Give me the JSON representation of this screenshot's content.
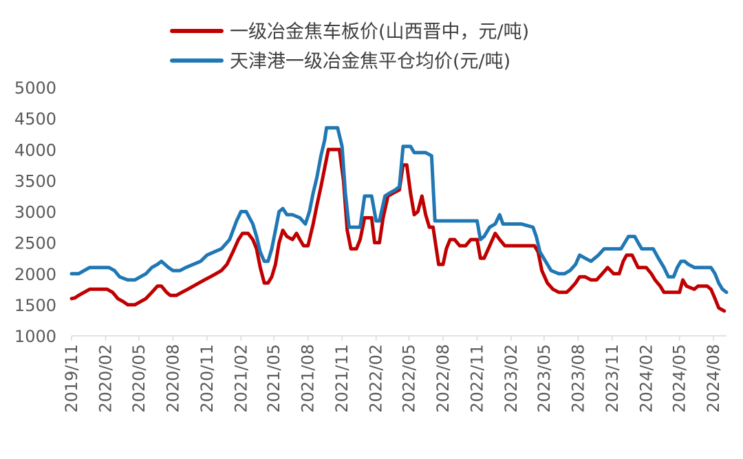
{
  "chart_data": {
    "type": "line",
    "title": "",
    "xlabel": "",
    "ylabel": "",
    "ylim": [
      1000,
      5000
    ],
    "yticks": [
      1000,
      1500,
      2000,
      2500,
      3000,
      3500,
      4000,
      4500,
      5000
    ],
    "xticks": [
      "2019/11",
      "2020/02",
      "2020/05",
      "2020/08",
      "2020/11",
      "2021/02",
      "2021/05",
      "2021/08",
      "2021/11",
      "2022/02",
      "2022/05",
      "2022/08",
      "2022/11",
      "2023/02",
      "2023/05",
      "2023/08",
      "2023/11",
      "2024/02",
      "2024/05",
      "2024/08"
    ],
    "legend_position": "top",
    "grid": false,
    "series": [
      {
        "name": "一级冶金焦车板价(山西晋中，元/吨)",
        "color": "#C00000",
        "points": [
          [
            "2019-11-01",
            1600
          ],
          [
            "2019-11-10",
            1610
          ],
          [
            "2019-11-20",
            1650
          ],
          [
            "2019-12-05",
            1700
          ],
          [
            "2019-12-20",
            1750
          ],
          [
            "2020-01-15",
            1750
          ],
          [
            "2020-02-05",
            1750
          ],
          [
            "2020-02-20",
            1700
          ],
          [
            "2020-03-05",
            1600
          ],
          [
            "2020-03-20",
            1550
          ],
          [
            "2020-04-01",
            1500
          ],
          [
            "2020-04-20",
            1500
          ],
          [
            "2020-05-05",
            1550
          ],
          [
            "2020-05-20",
            1600
          ],
          [
            "2020-06-05",
            1700
          ],
          [
            "2020-06-20",
            1800
          ],
          [
            "2020-07-01",
            1800
          ],
          [
            "2020-07-15",
            1700
          ],
          [
            "2020-07-25",
            1650
          ],
          [
            "2020-08-10",
            1650
          ],
          [
            "2020-08-25",
            1700
          ],
          [
            "2020-09-10",
            1750
          ],
          [
            "2020-09-25",
            1800
          ],
          [
            "2020-10-10",
            1850
          ],
          [
            "2020-10-25",
            1900
          ],
          [
            "2020-11-10",
            1950
          ],
          [
            "2020-11-25",
            2000
          ],
          [
            "2020-12-10",
            2050
          ],
          [
            "2020-12-25",
            2150
          ],
          [
            "2021-01-10",
            2350
          ],
          [
            "2021-01-25",
            2550
          ],
          [
            "2021-02-05",
            2650
          ],
          [
            "2021-02-20",
            2650
          ],
          [
            "2021-03-05",
            2550
          ],
          [
            "2021-03-15",
            2400
          ],
          [
            "2021-03-25",
            2100
          ],
          [
            "2021-04-05",
            1850
          ],
          [
            "2021-04-15",
            1850
          ],
          [
            "2021-04-25",
            1950
          ],
          [
            "2021-05-05",
            2150
          ],
          [
            "2021-05-15",
            2500
          ],
          [
            "2021-05-25",
            2700
          ],
          [
            "2021-06-05",
            2600
          ],
          [
            "2021-06-20",
            2550
          ],
          [
            "2021-07-01",
            2650
          ],
          [
            "2021-07-10",
            2550
          ],
          [
            "2021-07-20",
            2450
          ],
          [
            "2021-08-01",
            2450
          ],
          [
            "2021-08-15",
            2800
          ],
          [
            "2021-08-25",
            3100
          ],
          [
            "2021-09-05",
            3400
          ],
          [
            "2021-09-15",
            3700
          ],
          [
            "2021-09-25",
            4000
          ],
          [
            "2021-10-15",
            4000
          ],
          [
            "2021-10-25",
            4000
          ],
          [
            "2021-11-05",
            3500
          ],
          [
            "2021-11-15",
            2700
          ],
          [
            "2021-11-25",
            2400
          ],
          [
            "2021-12-10",
            2400
          ],
          [
            "2021-12-20",
            2550
          ],
          [
            "2022-01-01",
            2900
          ],
          [
            "2022-01-20",
            2900
          ],
          [
            "2022-01-28",
            2500
          ],
          [
            "2022-02-10",
            2500
          ],
          [
            "2022-02-20",
            2900
          ],
          [
            "2022-03-05",
            3250
          ],
          [
            "2022-03-20",
            3300
          ],
          [
            "2022-04-05",
            3350
          ],
          [
            "2022-04-15",
            3750
          ],
          [
            "2022-04-25",
            3750
          ],
          [
            "2022-05-05",
            3300
          ],
          [
            "2022-05-15",
            2950
          ],
          [
            "2022-05-25",
            3000
          ],
          [
            "2022-06-05",
            3250
          ],
          [
            "2022-06-15",
            2950
          ],
          [
            "2022-06-25",
            2750
          ],
          [
            "2022-07-05",
            2750
          ],
          [
            "2022-07-20",
            2150
          ],
          [
            "2022-08-01",
            2150
          ],
          [
            "2022-08-10",
            2400
          ],
          [
            "2022-08-20",
            2550
          ],
          [
            "2022-09-01",
            2550
          ],
          [
            "2022-09-15",
            2450
          ],
          [
            "2022-10-01",
            2450
          ],
          [
            "2022-10-15",
            2550
          ],
          [
            "2022-11-01",
            2550
          ],
          [
            "2022-11-10",
            2250
          ],
          [
            "2022-11-20",
            2250
          ],
          [
            "2022-12-05",
            2450
          ],
          [
            "2022-12-20",
            2650
          ],
          [
            "2023-01-01",
            2550
          ],
          [
            "2023-01-15",
            2450
          ],
          [
            "2023-03-15",
            2450
          ],
          [
            "2023-04-05",
            2450
          ],
          [
            "2023-04-15",
            2350
          ],
          [
            "2023-04-25",
            2050
          ],
          [
            "2023-05-10",
            1850
          ],
          [
            "2023-05-25",
            1750
          ],
          [
            "2023-06-10",
            1700
          ],
          [
            "2023-07-01",
            1700
          ],
          [
            "2023-07-10",
            1750
          ],
          [
            "2023-07-25",
            1850
          ],
          [
            "2023-08-05",
            1950
          ],
          [
            "2023-08-20",
            1950
          ],
          [
            "2023-09-05",
            1900
          ],
          [
            "2023-09-20",
            1900
          ],
          [
            "2023-10-05",
            2000
          ],
          [
            "2023-10-20",
            2100
          ],
          [
            "2023-11-05",
            2000
          ],
          [
            "2023-11-20",
            2000
          ],
          [
            "2023-12-01",
            2200
          ],
          [
            "2023-12-10",
            2300
          ],
          [
            "2023-12-25",
            2300
          ],
          [
            "2024-01-10",
            2100
          ],
          [
            "2024-02-01",
            2100
          ],
          [
            "2024-02-15",
            2000
          ],
          [
            "2024-02-25",
            1900
          ],
          [
            "2024-03-10",
            1800
          ],
          [
            "2024-03-20",
            1700
          ],
          [
            "2024-05-01",
            1700
          ],
          [
            "2024-05-10",
            1900
          ],
          [
            "2024-05-20",
            1800
          ],
          [
            "2024-06-10",
            1750
          ],
          [
            "2024-06-20",
            1800
          ],
          [
            "2024-07-15",
            1800
          ],
          [
            "2024-07-25",
            1750
          ],
          [
            "2024-08-05",
            1600
          ],
          [
            "2024-08-15",
            1450
          ],
          [
            "2024-08-30",
            1400
          ]
        ]
      },
      {
        "name": "天津港一级冶金焦平仓均价(元/吨)",
        "color": "#1F77B4",
        "points": [
          [
            "2019-11-01",
            2000
          ],
          [
            "2019-11-20",
            2000
          ],
          [
            "2019-12-05",
            2050
          ],
          [
            "2019-12-20",
            2100
          ],
          [
            "2020-02-10",
            2100
          ],
          [
            "2020-02-25",
            2050
          ],
          [
            "2020-03-10",
            1950
          ],
          [
            "2020-04-01",
            1900
          ],
          [
            "2020-04-20",
            1900
          ],
          [
            "2020-05-05",
            1950
          ],
          [
            "2020-05-20",
            2000
          ],
          [
            "2020-06-05",
            2100
          ],
          [
            "2020-06-20",
            2150
          ],
          [
            "2020-07-01",
            2200
          ],
          [
            "2020-07-20",
            2100
          ],
          [
            "2020-08-01",
            2050
          ],
          [
            "2020-08-20",
            2050
          ],
          [
            "2020-09-05",
            2100
          ],
          [
            "2020-09-25",
            2150
          ],
          [
            "2020-10-15",
            2200
          ],
          [
            "2020-11-01",
            2300
          ],
          [
            "2020-11-20",
            2350
          ],
          [
            "2020-12-10",
            2400
          ],
          [
            "2021-01-01",
            2550
          ],
          [
            "2021-01-20",
            2850
          ],
          [
            "2021-02-01",
            3000
          ],
          [
            "2021-02-15",
            3000
          ],
          [
            "2021-03-05",
            2800
          ],
          [
            "2021-03-15",
            2600
          ],
          [
            "2021-03-25",
            2350
          ],
          [
            "2021-04-05",
            2200
          ],
          [
            "2021-04-15",
            2200
          ],
          [
            "2021-04-25",
            2400
          ],
          [
            "2021-05-05",
            2700
          ],
          [
            "2021-05-15",
            3000
          ],
          [
            "2021-05-25",
            3050
          ],
          [
            "2021-06-05",
            2950
          ],
          [
            "2021-06-20",
            2950
          ],
          [
            "2021-07-10",
            2900
          ],
          [
            "2021-07-25",
            2800
          ],
          [
            "2021-08-05",
            3000
          ],
          [
            "2021-08-15",
            3300
          ],
          [
            "2021-08-25",
            3550
          ],
          [
            "2021-09-05",
            3900
          ],
          [
            "2021-09-15",
            4150
          ],
          [
            "2021-09-20",
            4350
          ],
          [
            "2021-10-20",
            4350
          ],
          [
            "2021-11-01",
            4050
          ],
          [
            "2021-11-10",
            3300
          ],
          [
            "2021-11-20",
            2750
          ],
          [
            "2021-12-20",
            2750
          ],
          [
            "2022-01-01",
            3250
          ],
          [
            "2022-01-20",
            3250
          ],
          [
            "2022-02-01",
            2850
          ],
          [
            "2022-02-10",
            2850
          ],
          [
            "2022-02-25",
            3250
          ],
          [
            "2022-03-10",
            3300
          ],
          [
            "2022-03-25",
            3350
          ],
          [
            "2022-04-05",
            3400
          ],
          [
            "2022-04-15",
            4050
          ],
          [
            "2022-05-05",
            4050
          ],
          [
            "2022-05-15",
            3950
          ],
          [
            "2022-06-01",
            3950
          ],
          [
            "2022-06-15",
            3950
          ],
          [
            "2022-07-01",
            3900
          ],
          [
            "2022-07-10",
            2850
          ],
          [
            "2022-08-01",
            2850
          ],
          [
            "2022-08-20",
            2850
          ],
          [
            "2022-10-01",
            2850
          ],
          [
            "2022-10-15",
            2850
          ],
          [
            "2022-11-01",
            2850
          ],
          [
            "2022-11-10",
            2550
          ],
          [
            "2022-11-20",
            2600
          ],
          [
            "2022-12-05",
            2750
          ],
          [
            "2022-12-20",
            2800
          ],
          [
            "2023-01-01",
            2950
          ],
          [
            "2023-01-10",
            2800
          ],
          [
            "2023-03-01",
            2800
          ],
          [
            "2023-04-01",
            2750
          ],
          [
            "2023-04-10",
            2600
          ],
          [
            "2023-04-20",
            2350
          ],
          [
            "2023-05-05",
            2200
          ],
          [
            "2023-05-20",
            2050
          ],
          [
            "2023-06-10",
            2000
          ],
          [
            "2023-06-25",
            2000
          ],
          [
            "2023-07-10",
            2050
          ],
          [
            "2023-07-25",
            2150
          ],
          [
            "2023-08-05",
            2300
          ],
          [
            "2023-08-20",
            2250
          ],
          [
            "2023-09-05",
            2200
          ],
          [
            "2023-09-25",
            2300
          ],
          [
            "2023-10-10",
            2400
          ],
          [
            "2023-10-25",
            2400
          ],
          [
            "2023-11-10",
            2400
          ],
          [
            "2023-11-25",
            2400
          ],
          [
            "2023-12-05",
            2500
          ],
          [
            "2023-12-15",
            2600
          ],
          [
            "2024-01-01",
            2600
          ],
          [
            "2024-01-10",
            2500
          ],
          [
            "2024-01-20",
            2400
          ],
          [
            "2024-02-20",
            2400
          ],
          [
            "2024-03-05",
            2250
          ],
          [
            "2024-03-20",
            2100
          ],
          [
            "2024-04-01",
            1950
          ],
          [
            "2024-04-15",
            1950
          ],
          [
            "2024-04-25",
            2100
          ],
          [
            "2024-05-05",
            2200
          ],
          [
            "2024-05-15",
            2200
          ],
          [
            "2024-05-25",
            2150
          ],
          [
            "2024-06-10",
            2100
          ],
          [
            "2024-06-25",
            2100
          ],
          [
            "2024-07-05",
            2100
          ],
          [
            "2024-07-25",
            2100
          ],
          [
            "2024-08-05",
            2000
          ],
          [
            "2024-08-15",
            1850
          ],
          [
            "2024-08-25",
            1750
          ],
          [
            "2024-09-05",
            1700
          ]
        ]
      }
    ]
  }
}
